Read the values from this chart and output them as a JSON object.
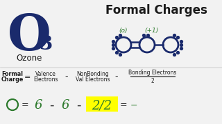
{
  "bg_color": "#f2f2f2",
  "title_right": "Formal Charges",
  "o3_label": "O",
  "o3_subscript": "3",
  "ozone_label": "Ozone",
  "formal_charge_label1": "Formal",
  "formal_charge_label2": "Charge",
  "valence_label1": "Valence",
  "valence_label2": "Electrons",
  "nonbonding_label1": "NonBonding",
  "nonbonding_label2": "Val Electrons",
  "bonding_label": "Bonding Electrons",
  "bonding_denom": "2",
  "formula_6a": "6",
  "formula_6b": "6",
  "formula_22": "2/2",
  "charge_0": "(o)",
  "charge_p1": "(+1)",
  "dark_blue": "#1a2a6c",
  "green_hand": "#2d7a2d",
  "yellow_bg": "#ffff00",
  "text_dark": "#1a1a1a",
  "white": "#ffffff"
}
